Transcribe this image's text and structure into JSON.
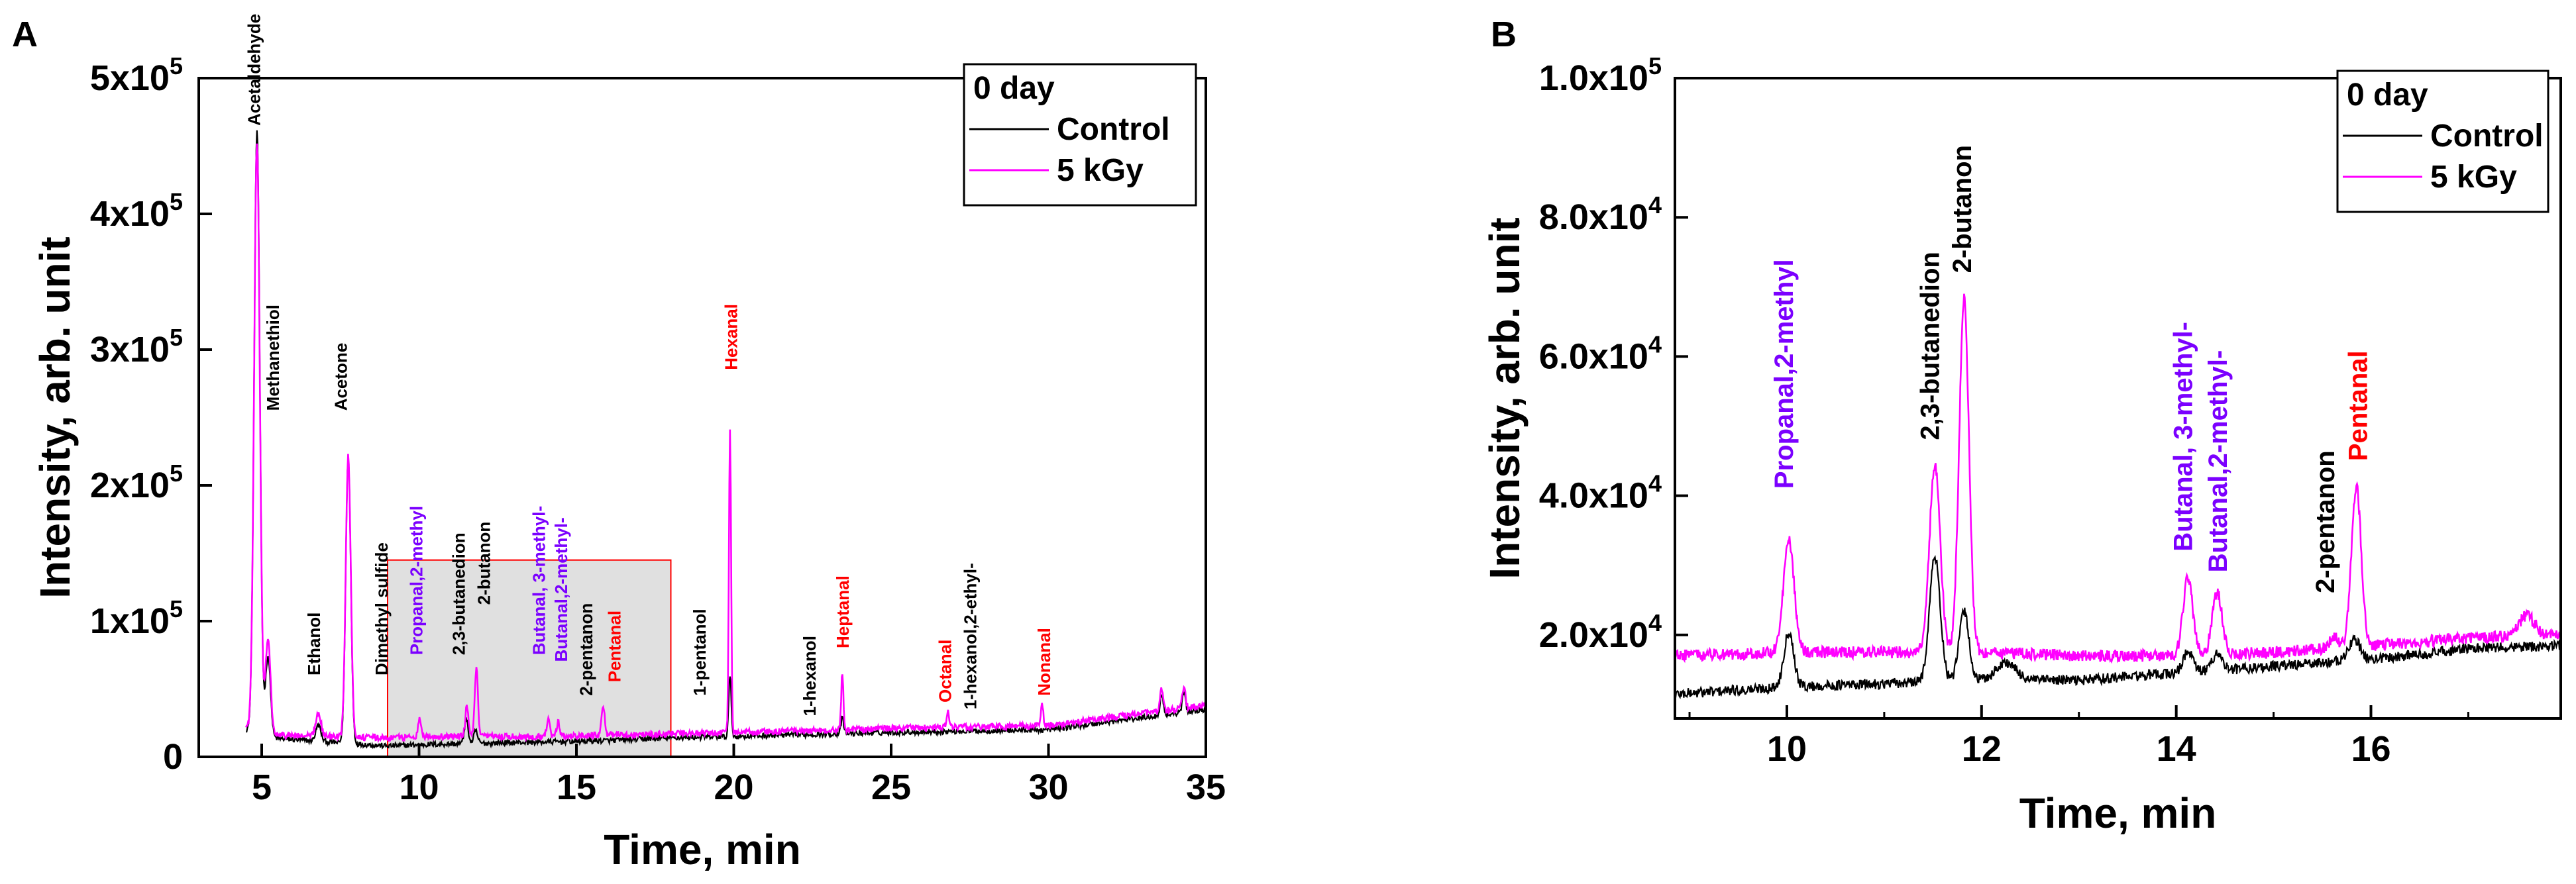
{
  "colors": {
    "control": "#000000",
    "treated": "#ff00ff",
    "black_label": "#000000",
    "red_label": "#ff0000",
    "purple_label": "#7b00ff",
    "zoom_fill": "#e0e0e0",
    "zoom_border": "#ff0000"
  },
  "chart_data": [
    {
      "type": "line",
      "panel_label": "A",
      "xlabel": "Time, min",
      "ylabel": "Intensity, arb. unit",
      "xlim": [
        3,
        35
      ],
      "ylim": [
        0,
        500000
      ],
      "xticks": [
        5,
        10,
        15,
        20,
        25,
        30,
        35
      ],
      "xtick_labels": [
        "5",
        "10",
        "15",
        "20",
        "25",
        "30",
        "35"
      ],
      "yticks": [
        0,
        100000,
        200000,
        300000,
        400000,
        500000
      ],
      "ytick_labels": [
        {
          "base": "0",
          "exp": ""
        },
        {
          "base": "1x10",
          "exp": "5"
        },
        {
          "base": "2x10",
          "exp": "5"
        },
        {
          "base": "3x10",
          "exp": "5"
        },
        {
          "base": "4x10",
          "exp": "5"
        },
        {
          "base": "5x10",
          "exp": "5"
        }
      ],
      "legend": {
        "title": "0 day",
        "position": "top-right",
        "entries": [
          "Control",
          "5 kGy"
        ]
      },
      "zoom_region": {
        "x": [
          9,
          18
        ],
        "y": [
          0,
          145000
        ]
      },
      "x_range_data": [
        4.5,
        35
      ],
      "series": [
        {
          "name": "Control",
          "baseline": [
            [
              4.5,
              20000
            ],
            [
              5.2,
              14000
            ],
            [
              9,
              8000
            ],
            [
              10,
              9000
            ],
            [
              12,
              10000
            ],
            [
              14,
              11000
            ],
            [
              16,
              12000
            ],
            [
              18,
              14000
            ],
            [
              20,
              15000
            ],
            [
              25,
              18000
            ],
            [
              30,
              20000
            ],
            [
              35,
              35000
            ]
          ],
          "peaks": [
            [
              4.85,
              445000,
              0.09
            ],
            [
              5.2,
              60000,
              0.08
            ],
            [
              6.8,
              12000,
              0.08
            ],
            [
              7.75,
              210000,
              0.08
            ],
            [
              11.5,
              18000,
              0.06
            ],
            [
              11.8,
              9000,
              0.06
            ],
            [
              19.88,
              45000,
              0.04
            ],
            [
              23.45,
              12000,
              0.04
            ],
            [
              33.6,
              15000,
              0.05
            ],
            [
              34.3,
              15000,
              0.05
            ]
          ]
        },
        {
          "name": "5 kGy",
          "baseline": [
            [
              4.5,
              22000
            ],
            [
              5.2,
              16000
            ],
            [
              9,
              14000
            ],
            [
              10,
              15000
            ],
            [
              12,
              15000
            ],
            [
              14,
              15000
            ],
            [
              16,
              16000
            ],
            [
              18,
              17000
            ],
            [
              20,
              18000
            ],
            [
              25,
              21000
            ],
            [
              30,
              23000
            ],
            [
              35,
              38000
            ]
          ],
          "peaks": [
            [
              4.85,
              435000,
              0.09
            ],
            [
              5.2,
              70000,
              0.08
            ],
            [
              6.8,
              18000,
              0.08
            ],
            [
              7.75,
              208000,
              0.08
            ],
            [
              10.02,
              13000,
              0.05
            ],
            [
              11.52,
              22000,
              0.05
            ],
            [
              11.82,
              50000,
              0.05
            ],
            [
              14.1,
              12000,
              0.05
            ],
            [
              14.42,
              10000,
              0.05
            ],
            [
              15.85,
              23000,
              0.05
            ],
            [
              19.88,
              222000,
              0.035
            ],
            [
              23.45,
              42000,
              0.035
            ],
            [
              26.8,
              12000,
              0.04
            ],
            [
              29.8,
              17000,
              0.035
            ],
            [
              33.6,
              17000,
              0.05
            ],
            [
              34.3,
              16000,
              0.05
            ]
          ]
        }
      ],
      "annotations": [
        {
          "text": "Acetaldehyde",
          "x": 4.85,
          "y": 465000,
          "color": "black"
        },
        {
          "text": "Methanethiol",
          "x": 5.45,
          "y": 255000,
          "color": "black"
        },
        {
          "text": "Ethanol",
          "x": 6.75,
          "y": 60000,
          "color": "black"
        },
        {
          "text": "Acetone",
          "x": 7.6,
          "y": 255000,
          "color": "black"
        },
        {
          "text": "Dimethyl sulfide",
          "x": 8.9,
          "y": 60000,
          "color": "black"
        },
        {
          "text": "Propanal,2-methyl",
          "x": 10.0,
          "y": 75000,
          "color": "purple"
        },
        {
          "text": "2,3-butanedion",
          "x": 11.35,
          "y": 75000,
          "color": "black"
        },
        {
          "text": "2-butanon",
          "x": 12.15,
          "y": 112000,
          "color": "black"
        },
        {
          "text": "Butanal, 3-methyl-",
          "x": 13.9,
          "y": 75000,
          "color": "purple"
        },
        {
          "text": "Butanal,2-methyl-",
          "x": 14.6,
          "y": 70000,
          "color": "purple"
        },
        {
          "text": "2-pentanon",
          "x": 15.4,
          "y": 45000,
          "color": "black"
        },
        {
          "text": "Pentanal",
          "x": 16.3,
          "y": 55000,
          "color": "red"
        },
        {
          "text": "1-pentanol",
          "x": 19.0,
          "y": 45000,
          "color": "black"
        },
        {
          "text": "Hexanal",
          "x": 20.0,
          "y": 285000,
          "color": "red"
        },
        {
          "text": "1-hexanol",
          "x": 22.5,
          "y": 30000,
          "color": "black"
        },
        {
          "text": "Heptanal",
          "x": 23.55,
          "y": 80000,
          "color": "red"
        },
        {
          "text": "Octanal",
          "x": 26.8,
          "y": 40000,
          "color": "red"
        },
        {
          "text": "1-hexanol,2-ethyl-",
          "x": 27.6,
          "y": 35000,
          "color": "black"
        },
        {
          "text": "Nonanal",
          "x": 29.95,
          "y": 45000,
          "color": "red"
        }
      ]
    },
    {
      "type": "line",
      "panel_label": "B",
      "xlabel": "Time, min",
      "ylabel": "Intensity, arb. unit",
      "xlim": [
        8.85,
        17.95
      ],
      "ylim": [
        8000,
        100000
      ],
      "xticks": [
        10,
        12,
        14,
        16
      ],
      "xtick_labels": [
        "10",
        "12",
        "14",
        "16"
      ],
      "minor_xticks": [
        9,
        11,
        13,
        15,
        17
      ],
      "yticks": [
        20000,
        40000,
        60000,
        80000,
        100000
      ],
      "ytick_labels": [
        {
          "base": "2.0x10",
          "exp": "4"
        },
        {
          "base": "4.0x10",
          "exp": "4"
        },
        {
          "base": "6.0x10",
          "exp": "4"
        },
        {
          "base": "8.0x10",
          "exp": "4"
        },
        {
          "base": "1.0x10",
          "exp": "5"
        }
      ],
      "legend": {
        "title": "0 day",
        "position": "top-right",
        "entries": [
          "Control",
          "5 kGy"
        ]
      },
      "x_range_data": [
        8.85,
        17.95
      ],
      "series": [
        {
          "name": "Control",
          "baseline": [
            [
              8.85,
              11500
            ],
            [
              10,
              12500
            ],
            [
              11,
              13000
            ],
            [
              12,
              13500
            ],
            [
              13,
              13500
            ],
            [
              14,
              14500
            ],
            [
              15,
              15500
            ],
            [
              16,
              16500
            ],
            [
              17,
              18000
            ],
            [
              17.95,
              18500
            ]
          ],
          "peaks": [
            [
              10.02,
              8000,
              0.05
            ],
            [
              11.52,
              18000,
              0.055
            ],
            [
              11.82,
              10000,
              0.05
            ],
            [
              12.25,
              2500,
              0.1
            ],
            [
              14.12,
              3000,
              0.05
            ],
            [
              14.42,
              2500,
              0.05
            ],
            [
              15.83,
              3000,
              0.06
            ]
          ]
        },
        {
          "name": "5 kGy",
          "baseline": [
            [
              8.85,
              17000
            ],
            [
              10,
              17500
            ],
            [
              11,
              17500
            ],
            [
              12,
              17500
            ],
            [
              13,
              17000
            ],
            [
              14,
              17000
            ],
            [
              15,
              17500
            ],
            [
              16,
              18500
            ],
            [
              17,
              19500
            ],
            [
              17.95,
              20000
            ]
          ],
          "peaks": [
            [
              10.02,
              16000,
              0.055
            ],
            [
              11.52,
              27000,
              0.055
            ],
            [
              11.82,
              51000,
              0.05
            ],
            [
              14.12,
              11000,
              0.05
            ],
            [
              14.42,
              9000,
              0.05
            ],
            [
              15.62,
              1500,
              0.05
            ],
            [
              15.85,
              23000,
              0.05
            ],
            [
              17.6,
              3000,
              0.08
            ]
          ]
        }
      ],
      "annotations": [
        {
          "text": "Propanal,2-methyl",
          "x": 10.02,
          "y": 41000,
          "color": "purple"
        },
        {
          "text": "2,3-butanedion",
          "x": 11.52,
          "y": 48000,
          "color": "black"
        },
        {
          "text": "2-butanon",
          "x": 11.85,
          "y": 72000,
          "color": "black"
        },
        {
          "text": "Butanal, 3-methyl-",
          "x": 14.12,
          "y": 32000,
          "color": "purple"
        },
        {
          "text": "Butanal,2-methyl-",
          "x": 14.48,
          "y": 29000,
          "color": "purple"
        },
        {
          "text": "2-pentanon",
          "x": 15.58,
          "y": 26000,
          "color": "black"
        },
        {
          "text": "Pentanal",
          "x": 15.92,
          "y": 45000,
          "color": "red"
        }
      ]
    }
  ]
}
